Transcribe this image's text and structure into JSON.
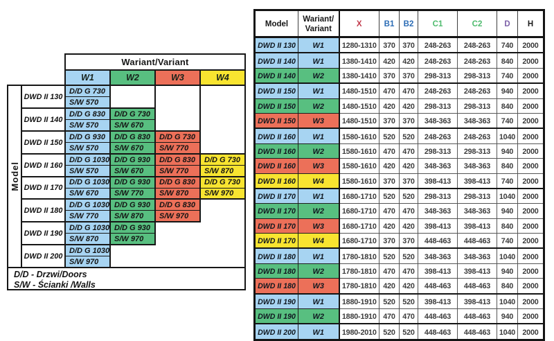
{
  "colors": {
    "w1": "#a7d4f2",
    "w2": "#58bf80",
    "w3": "#ec7059",
    "w4": "#f8e430",
    "border": "#161616",
    "header_x": "#c23b4c",
    "header_b": "#2b6cb5",
    "header_c": "#4fbb6e",
    "header_d": "#7c60a8",
    "header_h": "#1d1d1d"
  },
  "left_table": {
    "header": "Wariant/Variant",
    "model_axis_label": "Model",
    "variants": [
      "W1",
      "W2",
      "W3",
      "W4"
    ],
    "groups": [
      {
        "model": "DWD II 130",
        "cells": [
          {
            "dd": "D/D G 730",
            "sw": "S/W 570"
          },
          null,
          null,
          null
        ]
      },
      {
        "model": "DWD II 140",
        "cells": [
          {
            "dd": "D/D G 830",
            "sw": "S/W 570"
          },
          {
            "dd": "D/D G 730",
            "sw": "S/W 670"
          },
          null,
          null
        ]
      },
      {
        "model": "DWD II 150",
        "cells": [
          {
            "dd": "D/D G 930",
            "sw": "S/W 570"
          },
          {
            "dd": "D/D G 830",
            "sw": "S/W 670"
          },
          {
            "dd": "D/D G 730",
            "sw": "S/W 770"
          },
          null
        ]
      },
      {
        "model": "DWD II 160",
        "cells": [
          {
            "dd": "D/D G 1030",
            "sw": "S/W 570"
          },
          {
            "dd": "D/D G 930",
            "sw": "S/W 670"
          },
          {
            "dd": "D/D G 830",
            "sw": "S/W 770"
          },
          {
            "dd": "D/D G 730",
            "sw": "S/W 870"
          }
        ]
      },
      {
        "model": "DWD II 170",
        "cells": [
          {
            "dd": "D/D G 1030",
            "sw": "S/W 670"
          },
          {
            "dd": "D/D G 930",
            "sw": "S/W 770"
          },
          {
            "dd": "D/D G 830",
            "sw": "S/W 870"
          },
          {
            "dd": "D/D G 730",
            "sw": "S/W 970"
          }
        ]
      },
      {
        "model": "DWD II 180",
        "cells": [
          {
            "dd": "D/D G 1030",
            "sw": "S/W 770"
          },
          {
            "dd": "D/D G 930",
            "sw": "S/W 870"
          },
          {
            "dd": "D/D G 830",
            "sw": "S/W 970"
          },
          null
        ]
      },
      {
        "model": "DWD II 190",
        "cells": [
          {
            "dd": "D/D G 1030",
            "sw": "S/W 870"
          },
          {
            "dd": "D/D G 930",
            "sw": "S/W 970"
          },
          null,
          null
        ]
      },
      {
        "model": "DWD II 200",
        "cells": [
          {
            "dd": "D/D G 1030",
            "sw": "S/W 970"
          },
          null,
          null,
          null
        ]
      }
    ],
    "legend": [
      "D/D - Drzwi/Doors",
      "S/W - Ścianki /Walls"
    ]
  },
  "right_table": {
    "headers": [
      {
        "label": "Model",
        "color": "#161616"
      },
      {
        "label": "Wariant/Variant",
        "color": "#161616"
      },
      {
        "label": "X",
        "color": "#c23b4c"
      },
      {
        "label": "B1",
        "color": "#2b6cb5"
      },
      {
        "label": "B2",
        "color": "#2b6cb5"
      },
      {
        "label": "C1",
        "color": "#4fbb6e"
      },
      {
        "label": "C2",
        "color": "#4fbb6e"
      },
      {
        "label": "D",
        "color": "#7c60a8"
      },
      {
        "label": "H",
        "color": "#1d1d1d"
      }
    ],
    "rows": [
      {
        "model": "DWD II 130",
        "variant": "W1",
        "values": [
          "1280-1310",
          "370",
          "370",
          "248-263",
          "248-263",
          "740",
          "2000"
        ]
      },
      {
        "model": "DWD II 140",
        "variant": "W1",
        "values": [
          "1380-1410",
          "420",
          "420",
          "248-263",
          "248-263",
          "840",
          "2000"
        ]
      },
      {
        "model": "DWD II 140",
        "variant": "W2",
        "values": [
          "1380-1410",
          "370",
          "370",
          "298-313",
          "298-313",
          "740",
          "2000"
        ]
      },
      {
        "model": "DWD II 150",
        "variant": "W1",
        "values": [
          "1480-1510",
          "470",
          "470",
          "248-263",
          "248-263",
          "940",
          "2000"
        ]
      },
      {
        "model": "DWD II 150",
        "variant": "W2",
        "values": [
          "1480-1510",
          "420",
          "420",
          "298-313",
          "298-313",
          "840",
          "2000"
        ]
      },
      {
        "model": "DWD II 150",
        "variant": "W3",
        "values": [
          "1480-1510",
          "370",
          "370",
          "348-363",
          "348-363",
          "740",
          "2000"
        ]
      },
      {
        "model": "DWD II 160",
        "variant": "W1",
        "values": [
          "1580-1610",
          "520",
          "520",
          "248-263",
          "248-263",
          "1040",
          "2000"
        ]
      },
      {
        "model": "DWD II 160",
        "variant": "W2",
        "values": [
          "1580-1610",
          "470",
          "470",
          "298-313",
          "298-313",
          "940",
          "2000"
        ]
      },
      {
        "model": "DWD II 160",
        "variant": "W3",
        "values": [
          "1580-1610",
          "420",
          "420",
          "348-363",
          "348-363",
          "840",
          "2000"
        ]
      },
      {
        "model": "DWD II 160",
        "variant": "W4",
        "values": [
          "1580-1610",
          "370",
          "370",
          "398-413",
          "398-413",
          "740",
          "2000"
        ]
      },
      {
        "model": "DWD II 170",
        "variant": "W1",
        "values": [
          "1680-1710",
          "520",
          "520",
          "298-313",
          "298-313",
          "1040",
          "2000"
        ]
      },
      {
        "model": "DWD II 170",
        "variant": "W2",
        "values": [
          "1680-1710",
          "470",
          "470",
          "348-363",
          "348-363",
          "940",
          "2000"
        ]
      },
      {
        "model": "DWD II 170",
        "variant": "W3",
        "values": [
          "1680-1710",
          "420",
          "420",
          "398-413",
          "398-413",
          "840",
          "2000"
        ]
      },
      {
        "model": "DWD II 170",
        "variant": "W4",
        "values": [
          "1680-1710",
          "370",
          "370",
          "448-463",
          "448-463",
          "740",
          "2000"
        ]
      },
      {
        "model": "DWD II 180",
        "variant": "W1",
        "values": [
          "1780-1810",
          "520",
          "520",
          "348-363",
          "348-363",
          "1040",
          "2000"
        ]
      },
      {
        "model": "DWD II 180",
        "variant": "W2",
        "values": [
          "1780-1810",
          "470",
          "470",
          "398-413",
          "398-413",
          "940",
          "2000"
        ]
      },
      {
        "model": "DWD II 180",
        "variant": "W3",
        "values": [
          "1780-1810",
          "420",
          "420",
          "448-463",
          "448-463",
          "840",
          "2000"
        ]
      },
      {
        "model": "DWD II 190",
        "variant": "W1",
        "values": [
          "1880-1910",
          "520",
          "520",
          "398-413",
          "398-413",
          "1040",
          "2000"
        ]
      },
      {
        "model": "DWD II 190",
        "variant": "W2",
        "values": [
          "1880-1910",
          "470",
          "470",
          "448-463",
          "448-463",
          "940",
          "2000"
        ]
      },
      {
        "model": "DWD II 200",
        "variant": "W1",
        "values": [
          "1980-2010",
          "520",
          "520",
          "448-463",
          "448-463",
          "1040",
          "2000"
        ]
      }
    ]
  }
}
